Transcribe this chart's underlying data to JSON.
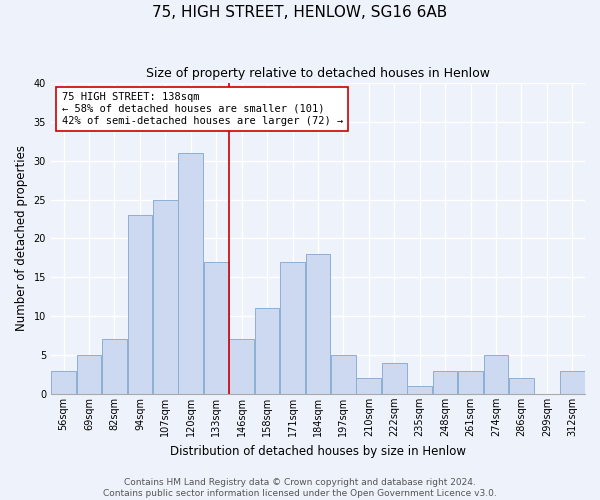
{
  "title": "75, HIGH STREET, HENLOW, SG16 6AB",
  "subtitle": "Size of property relative to detached houses in Henlow",
  "xlabel": "Distribution of detached houses by size in Henlow",
  "ylabel": "Number of detached properties",
  "bar_color": "#ccd9f0",
  "bar_edge_color": "#8bafd4",
  "vline_color": "#cc0000",
  "vline_x_index": 6,
  "categories": [
    "56sqm",
    "69sqm",
    "82sqm",
    "94sqm",
    "107sqm",
    "120sqm",
    "133sqm",
    "146sqm",
    "158sqm",
    "171sqm",
    "184sqm",
    "197sqm",
    "210sqm",
    "222sqm",
    "235sqm",
    "248sqm",
    "261sqm",
    "274sqm",
    "286sqm",
    "299sqm",
    "312sqm"
  ],
  "values": [
    3,
    5,
    7,
    23,
    25,
    31,
    17,
    7,
    11,
    17,
    18,
    5,
    2,
    4,
    1,
    3,
    3,
    5,
    2,
    0,
    3
  ],
  "ylim": [
    0,
    40
  ],
  "yticks": [
    0,
    5,
    10,
    15,
    20,
    25,
    30,
    35,
    40
  ],
  "annotation_title": "75 HIGH STREET: 138sqm",
  "annotation_line1": "← 58% of detached houses are smaller (101)",
  "annotation_line2": "42% of semi-detached houses are larger (72) →",
  "annotation_box_color": "#ffffff",
  "annotation_box_edge": "#cc0000",
  "footer1": "Contains HM Land Registry data © Crown copyright and database right 2024.",
  "footer2": "Contains public sector information licensed under the Open Government Licence v3.0.",
  "background_color": "#eef2fa",
  "grid_color": "#ffffff",
  "title_fontsize": 11,
  "subtitle_fontsize": 9,
  "axis_label_fontsize": 8.5,
  "tick_fontsize": 7,
  "annotation_fontsize": 7.5,
  "footer_fontsize": 6.5
}
